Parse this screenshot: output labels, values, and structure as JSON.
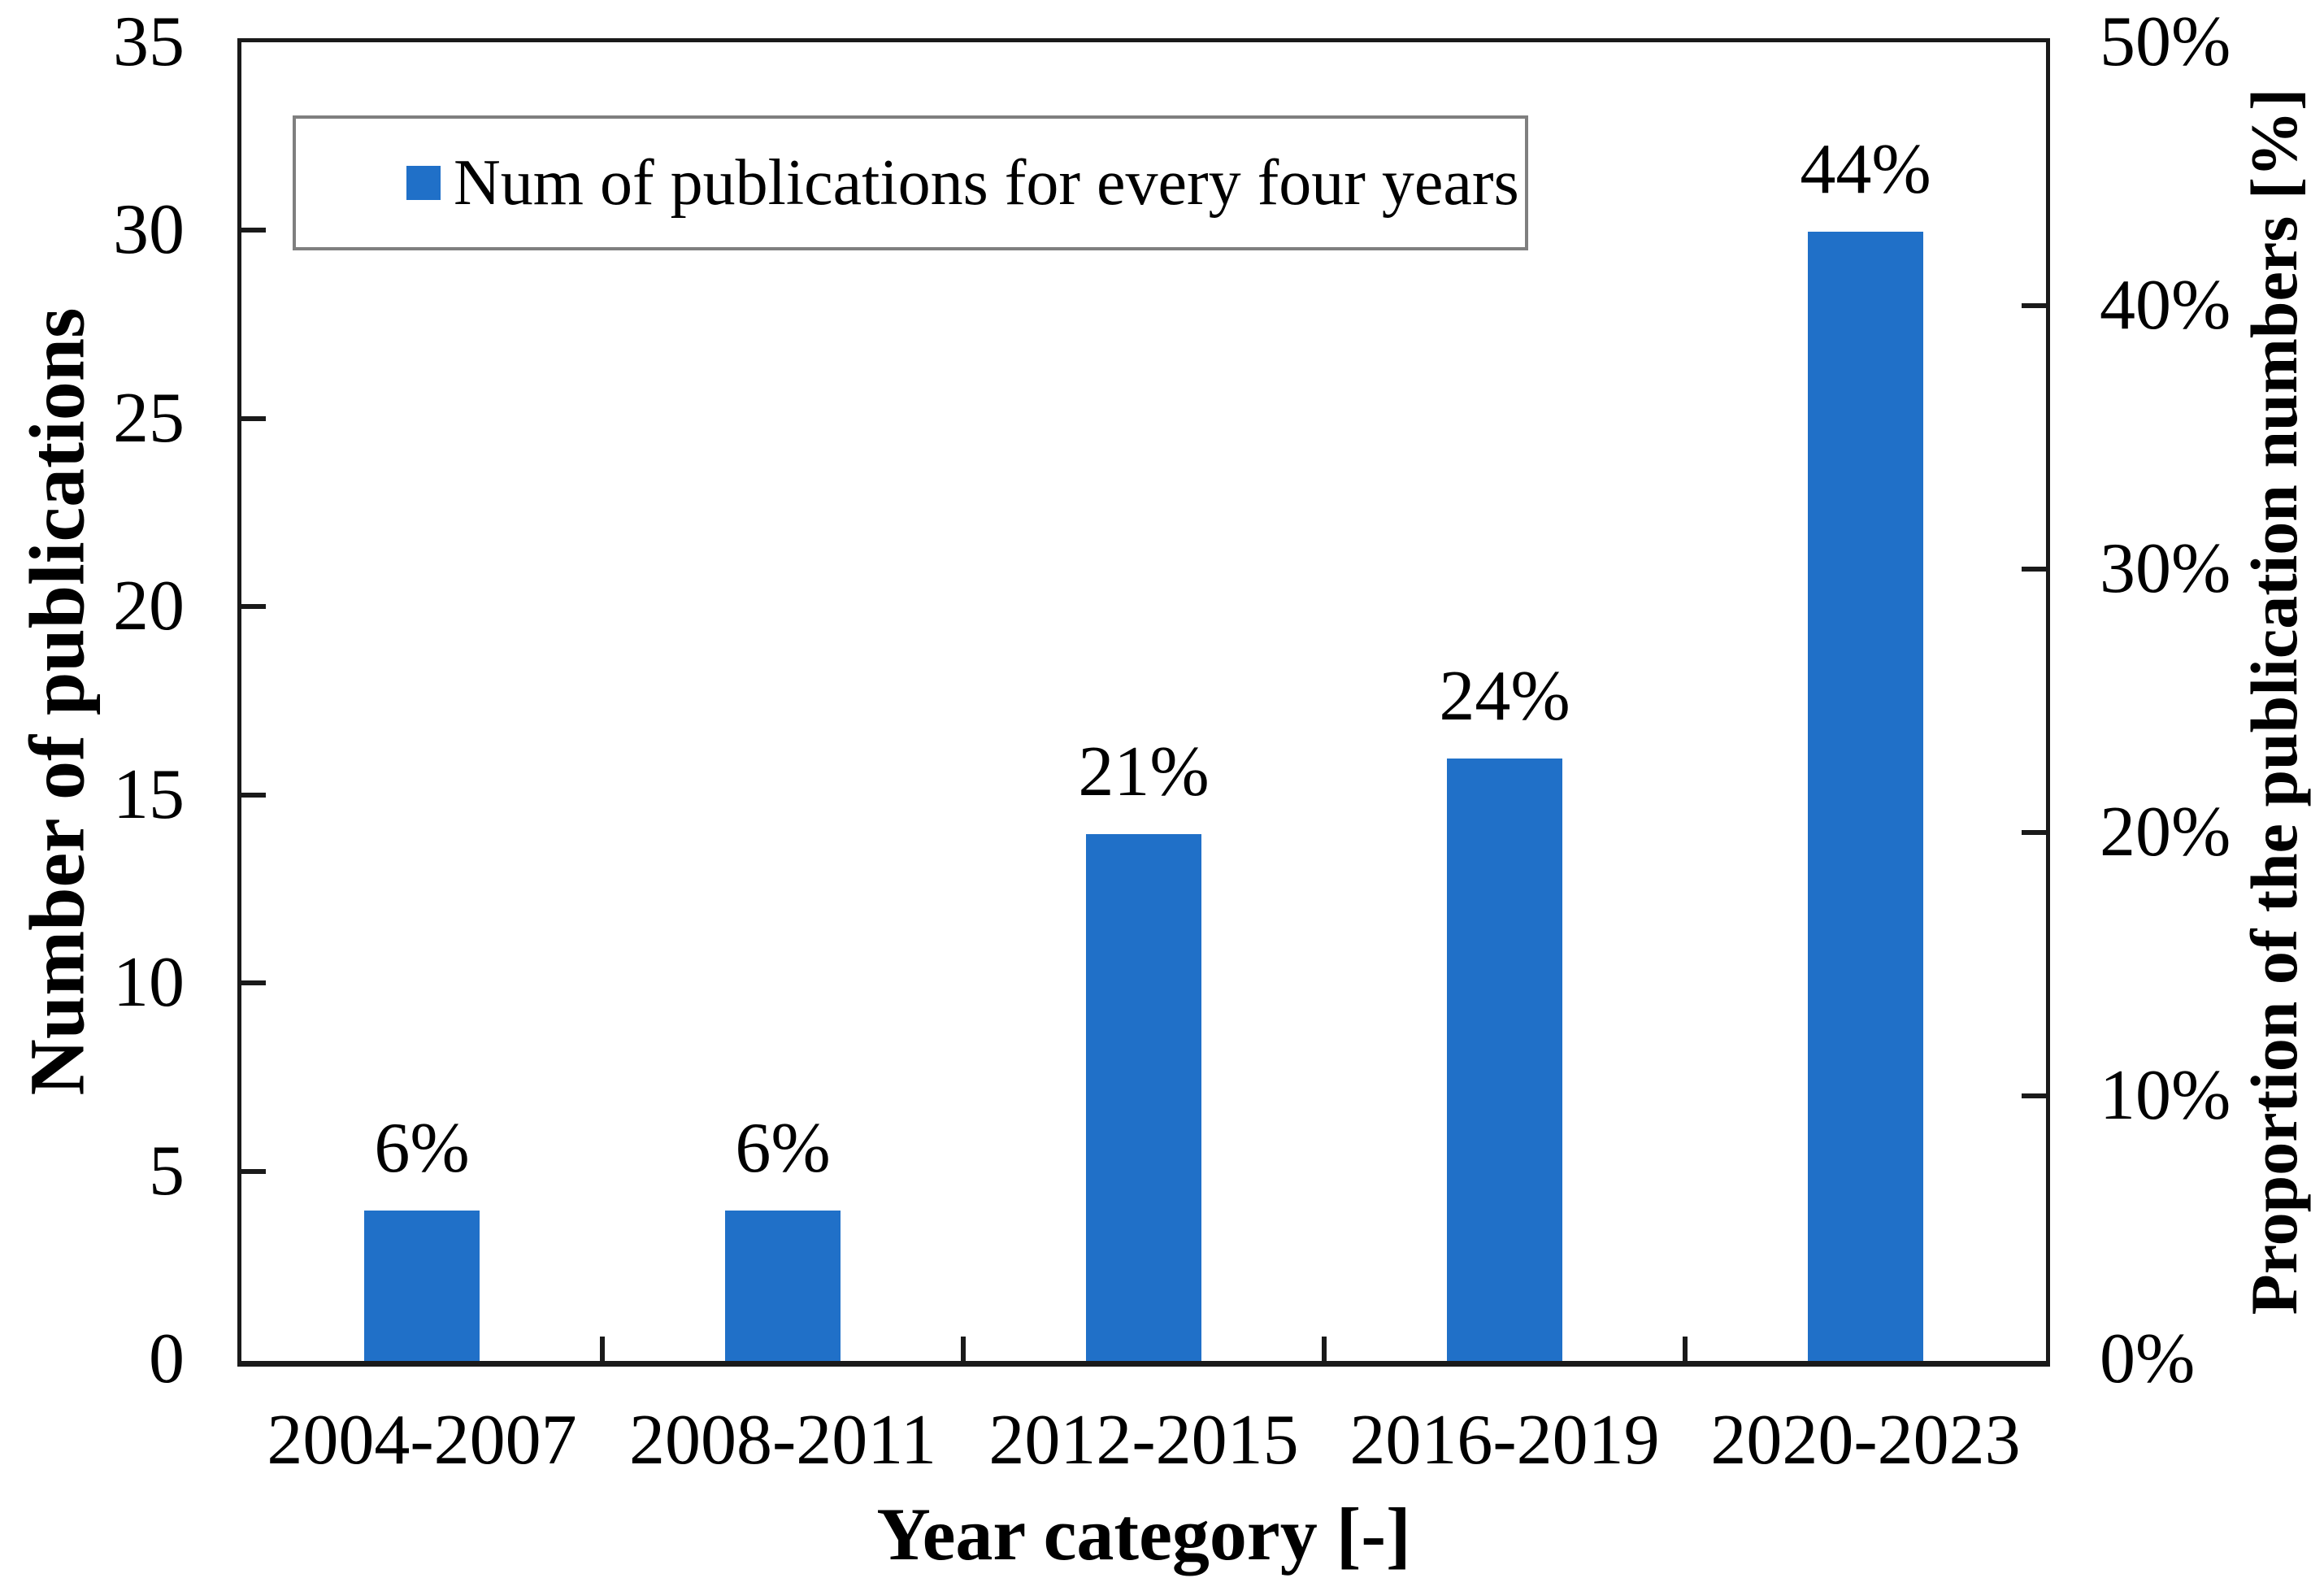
{
  "chart_data": {
    "type": "bar",
    "categories": [
      "2004-2007",
      "2008-2011",
      "2012-2015",
      "2016-2019",
      "2020-2023"
    ],
    "series": [
      {
        "name": "Num of publications for every four years",
        "values": [
          4,
          4,
          14,
          16,
          30
        ]
      }
    ],
    "data_labels": [
      "6%",
      "6%",
      "21%",
      "24%",
      "44%"
    ],
    "xlabel": "Year category [-]",
    "ylabel_left": "Number of publications",
    "ylabel_right": "Proportion of the publication numbers [%]",
    "y_left_axis": {
      "min": 0,
      "max": 35,
      "step": 5,
      "ticks": [
        "0",
        "5",
        "10",
        "15",
        "20",
        "25",
        "30",
        "35"
      ]
    },
    "y_right_axis": {
      "min": 0,
      "max": 50,
      "step": 10,
      "ticks": [
        "0%",
        "10%",
        "20%",
        "30%",
        "40%",
        "50%"
      ]
    },
    "legend": {
      "label": "Num of publications for every four years",
      "position": "top-left"
    },
    "grid": false,
    "bar_color": "#2070C8",
    "axis_color": "#1a1a1a",
    "legend_border_color": "#7f7f7f",
    "text_color": "#000000"
  }
}
